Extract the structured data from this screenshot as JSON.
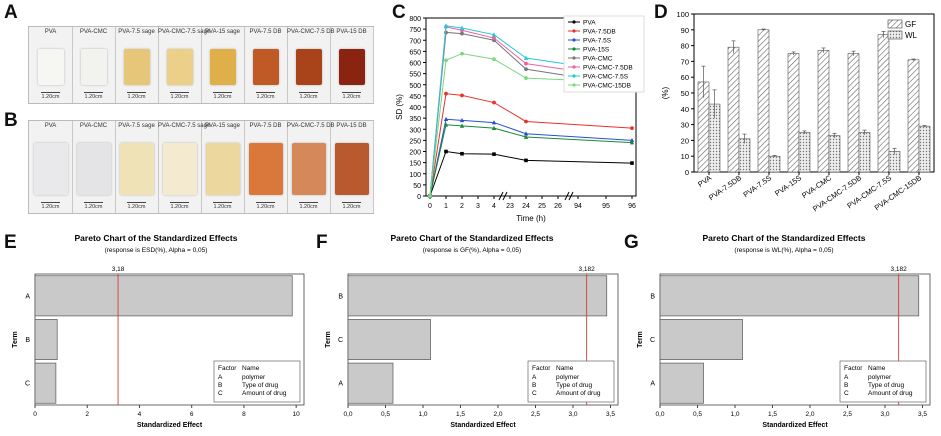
{
  "panel_labels": {
    "a": "A",
    "b": "B",
    "c": "C",
    "d": "D",
    "e": "E",
    "f": "F",
    "g": "G"
  },
  "photo_a": {
    "samples": [
      {
        "label": "PVA",
        "scale": "1.20cm",
        "color": "#f6f6f2"
      },
      {
        "label": "PVA-CMC",
        "scale": "1.20cm",
        "color": "#f2f2ef"
      },
      {
        "label": "PVA-7.5 sage",
        "scale": "1.20cm",
        "color": "#e6c77a"
      },
      {
        "label": "PVA-CMC-7.5 sage",
        "scale": "1.20cm",
        "color": "#ecd08a"
      },
      {
        "label": "PVA-15 sage",
        "scale": "1.20cm",
        "color": "#dfb04a"
      },
      {
        "label": "PVA-7.5 DB",
        "scale": "1.20cm",
        "color": "#c05a24"
      },
      {
        "label": "PVA-CMC-7.5 DB",
        "scale": "1.20cm",
        "color": "#a8431a"
      },
      {
        "label": "PVA-15 DB",
        "scale": "1.20cm",
        "color": "#8a2410"
      }
    ]
  },
  "photo_b": {
    "samples": [
      {
        "label": "PVA",
        "scale": "1.20cm",
        "color": "#e9e9ec"
      },
      {
        "label": "PVA-CMC",
        "scale": "1.20cm",
        "color": "#e4e4e6"
      },
      {
        "label": "PVA-7.5 sage",
        "scale": "1.20cm",
        "color": "#efe2b6"
      },
      {
        "label": "PVA-CMC-7.5 sage",
        "scale": "1.20cm",
        "color": "#f3ead0"
      },
      {
        "label": "PVA-15 sage",
        "scale": "1.20cm",
        "color": "#ecd89e"
      },
      {
        "label": "PVA-7.5 DB",
        "scale": "1.20cm",
        "color": "#d9783a"
      },
      {
        "label": "PVA-CMC-7.5 DB",
        "scale": "1.20cm",
        "color": "#d5895a"
      },
      {
        "label": "PVA-15 DB",
        "scale": "1.20cm",
        "color": "#b85a2e"
      }
    ]
  },
  "chart_data": [
    {
      "id": "C",
      "type": "line",
      "xlabel": "Time (h)",
      "ylabel": "SD (%)",
      "ylim": [
        0,
        800
      ],
      "yticks": [
        0,
        50,
        100,
        150,
        200,
        250,
        300,
        350,
        400,
        450,
        500,
        550,
        600,
        650,
        700,
        750,
        800
      ],
      "xticks": [
        "0",
        "1",
        "2",
        "3",
        "4",
        "23",
        "24",
        "25",
        "26",
        "94",
        "95",
        "96"
      ],
      "x_points": [
        "0",
        "1",
        "2",
        "4",
        "24",
        "96"
      ],
      "series": [
        {
          "name": "PVA",
          "color": "#000000",
          "marker": "square",
          "values": [
            0,
            200,
            190,
            188,
            160,
            148
          ]
        },
        {
          "name": "PVA-7.5DB",
          "color": "#e8322c",
          "marker": "circle",
          "values": [
            0,
            460,
            452,
            420,
            335,
            305
          ]
        },
        {
          "name": "PVA-7.5S",
          "color": "#2b4fd0",
          "marker": "triangle",
          "values": [
            0,
            345,
            340,
            330,
            280,
            250
          ]
        },
        {
          "name": "PVA-15S",
          "color": "#1a8a3a",
          "marker": "triangle",
          "values": [
            0,
            320,
            315,
            305,
            265,
            240
          ]
        },
        {
          "name": "PVA-CMC",
          "color": "#777777",
          "marker": "circle",
          "values": [
            0,
            735,
            730,
            700,
            570,
            495
          ]
        },
        {
          "name": "PVA-CMC-7.5DB",
          "color": "#ee5fa0",
          "marker": "circle",
          "values": [
            0,
            760,
            745,
            710,
            595,
            525
          ]
        },
        {
          "name": "PVA-CMC-7.5S",
          "color": "#22c8d8",
          "marker": "triangle",
          "values": [
            0,
            765,
            755,
            725,
            620,
            550
          ]
        },
        {
          "name": "PVA-CMC-15DB",
          "color": "#7ed67e",
          "marker": "circle",
          "values": [
            0,
            610,
            640,
            615,
            530,
            510
          ]
        }
      ]
    },
    {
      "id": "D",
      "type": "bar",
      "ylabel": "(%)",
      "ylim": [
        0,
        100
      ],
      "yticks": [
        0,
        10,
        20,
        30,
        40,
        50,
        60,
        70,
        80,
        90,
        100
      ],
      "categories": [
        "PVA",
        "PVA-7.5DB",
        "PVA-7.5S",
        "PVA-15S",
        "PVA-CMC",
        "PVA-CMC-7.5DB",
        "PVA-CMC-7.5S",
        "PVA-CMC-15DB"
      ],
      "legend": [
        "GF",
        "WL"
      ],
      "series": [
        {
          "name": "GF",
          "pattern": "hatch",
          "values": [
            57,
            79,
            90,
            75,
            77,
            75,
            87,
            71
          ],
          "errors": [
            10,
            4,
            0.5,
            1,
            1.5,
            1.5,
            2,
            0.5
          ]
        },
        {
          "name": "WL",
          "pattern": "dots",
          "values": [
            43,
            21,
            10,
            25,
            23,
            25,
            13,
            29
          ],
          "errors": [
            9,
            3,
            0.5,
            1,
            1.5,
            1.5,
            2,
            0.5
          ]
        }
      ]
    },
    {
      "id": "E",
      "type": "bar",
      "orientation": "horizontal",
      "title": "Pareto Chart of the Standardized Effects",
      "subtitle": "(response is ESD(%), Alpha = 0,05)",
      "xlabel": "Standardized Effect",
      "ylabel": "Term",
      "xlim": [
        0,
        10.3
      ],
      "xticks": [
        "0",
        "2",
        "4",
        "6",
        "8",
        "10"
      ],
      "reference": {
        "value": 3.18,
        "label": "3,18"
      },
      "categories": [
        "A",
        "B",
        "C"
      ],
      "values": [
        9.85,
        0.85,
        0.8
      ],
      "legend_header": [
        "Factor",
        "Name"
      ],
      "factors": [
        {
          "code": "A",
          "name": "polymer"
        },
        {
          "code": "B",
          "name": "Type of drug"
        },
        {
          "code": "C",
          "name": "Amount of drug"
        }
      ]
    },
    {
      "id": "F",
      "type": "bar",
      "orientation": "horizontal",
      "title": "Pareto Chart of the Standardized Effects",
      "subtitle": "(response is GF(%), Alpha = 0,05)",
      "xlabel": "Standardized Effect",
      "ylabel": "Term",
      "xlim": [
        0,
        3.6
      ],
      "xticks": [
        "0,0",
        "0,5",
        "1,0",
        "1,5",
        "2,0",
        "2,5",
        "3,0",
        "3,5"
      ],
      "reference": {
        "value": 3.182,
        "label": "3,182"
      },
      "categories": [
        "B",
        "C",
        "A"
      ],
      "values": [
        3.45,
        1.1,
        0.6
      ],
      "legend_header": [
        "Factor",
        "Name"
      ],
      "factors": [
        {
          "code": "A",
          "name": "polymer"
        },
        {
          "code": "B",
          "name": "Type of drug"
        },
        {
          "code": "C",
          "name": "Amount of drug"
        }
      ]
    },
    {
      "id": "G",
      "type": "bar",
      "orientation": "horizontal",
      "title": "Pareto Chart of the Standardized Effects",
      "subtitle": "(response is WL(%), Alpha = 0,05)",
      "xlabel": "Standardized Effect",
      "ylabel": "Term",
      "xlim": [
        0,
        3.6
      ],
      "xticks": [
        "0,0",
        "0,5",
        "1,0",
        "1,5",
        "2,0",
        "2,5",
        "3,0",
        "3,5"
      ],
      "reference": {
        "value": 3.182,
        "label": "3,182"
      },
      "categories": [
        "B",
        "C",
        "A"
      ],
      "values": [
        3.45,
        1.1,
        0.58
      ],
      "legend_header": [
        "Factor",
        "Name"
      ],
      "factors": [
        {
          "code": "A",
          "name": "polymer"
        },
        {
          "code": "B",
          "name": "Type of drug"
        },
        {
          "code": "C",
          "name": "Amount of drug"
        }
      ]
    }
  ]
}
